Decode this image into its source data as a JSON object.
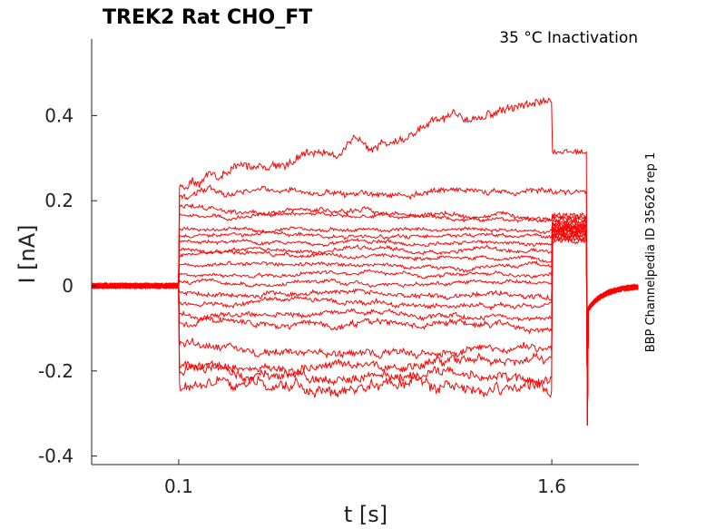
{
  "chart_data": {
    "type": "line",
    "title": "TREK2  Rat  CHO_FT",
    "subtitle": "35 °C  Inactivation",
    "side_note": "BBP Channelpedia ID 35626 rep 1",
    "xlabel": "t [s]",
    "ylabel": "I [nA]",
    "xlim": [
      -0.25,
      1.95
    ],
    "ylim": [
      -0.42,
      0.58
    ],
    "x_ticks": [
      0.1,
      1.6
    ],
    "x_tick_labels": [
      "0.1",
      "1.6"
    ],
    "y_ticks": [
      -0.4,
      -0.2,
      0,
      0.2,
      0.4
    ],
    "y_tick_labels": [
      "-0.4",
      "-0.2",
      "0",
      "0.2",
      "0.4"
    ],
    "grid": false,
    "series_color": "#ff0000",
    "step_start": 0.1,
    "step_end": 1.6,
    "baseline": 0.0,
    "series": [
      {
        "start": 0.235,
        "end": 0.44,
        "tail": 0.315,
        "noise": 0.008
      },
      {
        "start": 0.21,
        "end": 0.225,
        "tail": 0.22,
        "noise": 0.005
      },
      {
        "start": 0.185,
        "end": 0.16,
        "tail": 0.165,
        "noise": 0.004
      },
      {
        "start": 0.165,
        "end": 0.155,
        "tail": 0.16,
        "noise": 0.003
      },
      {
        "start": 0.135,
        "end": 0.13,
        "tail": 0.155,
        "noise": 0.003
      },
      {
        "start": 0.12,
        "end": 0.115,
        "tail": 0.15,
        "noise": 0.003
      },
      {
        "start": 0.105,
        "end": 0.1,
        "tail": 0.145,
        "noise": 0.003
      },
      {
        "start": 0.085,
        "end": 0.08,
        "tail": 0.14,
        "noise": 0.003
      },
      {
        "start": 0.07,
        "end": 0.065,
        "tail": 0.14,
        "noise": 0.003
      },
      {
        "start": 0.05,
        "end": 0.045,
        "tail": 0.135,
        "noise": 0.003
      },
      {
        "start": 0.03,
        "end": 0.025,
        "tail": 0.135,
        "noise": 0.003
      },
      {
        "start": 0.01,
        "end": 0.005,
        "tail": 0.13,
        "noise": 0.003
      },
      {
        "start": -0.015,
        "end": -0.02,
        "tail": 0.13,
        "noise": 0.004
      },
      {
        "start": -0.04,
        "end": -0.045,
        "tail": 0.125,
        "noise": 0.004
      },
      {
        "start": -0.065,
        "end": -0.07,
        "tail": 0.125,
        "noise": 0.004
      },
      {
        "start": -0.09,
        "end": -0.1,
        "tail": 0.12,
        "noise": 0.005
      },
      {
        "start": -0.14,
        "end": -0.16,
        "tail": 0.12,
        "noise": 0.006
      },
      {
        "start": -0.185,
        "end": -0.18,
        "tail": 0.115,
        "noise": 0.007
      },
      {
        "start": -0.2,
        "end": -0.23,
        "tail": 0.11,
        "noise": 0.008
      },
      {
        "start": -0.23,
        "end": -0.25,
        "tail": 0.105,
        "noise": 0.009
      }
    ]
  }
}
